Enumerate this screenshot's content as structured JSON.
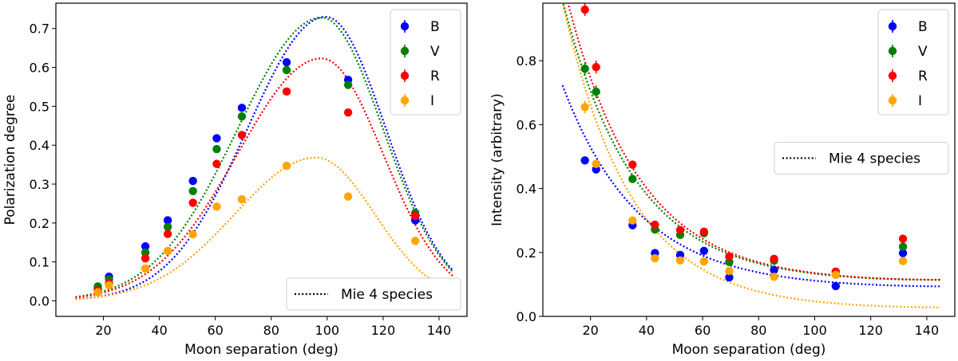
{
  "chart_data": [
    {
      "type": "scatter",
      "xlabel": "Moon separation (deg)",
      "ylabel": "Polarization degree",
      "xlim": [
        3,
        150
      ],
      "ylim": [
        -0.04,
        0.765
      ],
      "xticks": [
        "20",
        "40",
        "60",
        "80",
        "100",
        "120",
        "140"
      ],
      "yticks": [
        "0.0",
        "0.1",
        "0.2",
        "0.3",
        "0.4",
        "0.5",
        "0.6",
        "0.7"
      ],
      "legend_position": "top-right",
      "series": [
        {
          "name": "B",
          "color": "#0000ff",
          "x": [
            18,
            22,
            35,
            43,
            52,
            60.5,
            69.5,
            85.5,
            107.5,
            131.5
          ],
          "y": [
            0.03,
            0.062,
            0.14,
            0.207,
            0.308,
            0.418,
            0.496,
            0.613,
            0.568,
            0.207
          ]
        },
        {
          "name": "V",
          "color": "#008000",
          "x": [
            18,
            22,
            35,
            43,
            52,
            60.5,
            69.5,
            85.5,
            107.5,
            131.5
          ],
          "y": [
            0.037,
            0.055,
            0.124,
            0.19,
            0.282,
            0.39,
            0.474,
            0.593,
            0.555,
            0.226
          ]
        },
        {
          "name": "R",
          "color": "#ff0000",
          "x": [
            18,
            22,
            35,
            43,
            52,
            60.5,
            69.5,
            85.5,
            107.5,
            131.5
          ],
          "y": [
            0.027,
            0.045,
            0.109,
            0.172,
            0.252,
            0.352,
            0.426,
            0.538,
            0.484,
            0.218
          ]
        },
        {
          "name": "I",
          "color": "#ffa500",
          "x": [
            18,
            22,
            35,
            43,
            52,
            60.5,
            69.5,
            85.5,
            107.5,
            131.5
          ],
          "y": [
            0.022,
            0.04,
            0.083,
            0.128,
            0.171,
            0.242,
            0.261,
            0.347,
            0.268,
            0.154
          ]
        }
      ],
      "model": {
        "name": "Mie 4 species",
        "legend_position": "bottom-right",
        "curves": [
          {
            "band": "B",
            "color": "#0000ff",
            "peak_x": 99.5,
            "peak_y": 0.73,
            "sigma_left": 28,
            "sigma_right": 21.5,
            "x_range": [
              10,
              145
            ]
          },
          {
            "band": "V",
            "color": "#008000",
            "peak_x": 98,
            "peak_y": 0.728,
            "sigma_left": 30,
            "sigma_right": 22,
            "x_range": [
              10,
              145
            ]
          },
          {
            "band": "R",
            "color": "#ff0000",
            "peak_x": 98,
            "peak_y": 0.623,
            "sigma_left": 30,
            "sigma_right": 22,
            "x_range": [
              10,
              145
            ]
          },
          {
            "band": "I",
            "color": "#ffa500",
            "peak_x": 96,
            "peak_y": 0.368,
            "sigma_left": 29,
            "sigma_right": 21,
            "x_range": [
              10,
              145
            ]
          }
        ]
      }
    },
    {
      "type": "scatter",
      "xlabel": "Moon separation (deg)",
      "ylabel": "Intensity (arbitrary)",
      "xlim": [
        3,
        150
      ],
      "ylim": [
        0,
        0.98
      ],
      "xticks": [
        "20",
        "40",
        "60",
        "80",
        "100",
        "120",
        "140"
      ],
      "yticks": [
        "0.0",
        "0.2",
        "0.4",
        "0.6",
        "0.8"
      ],
      "legend_position": "top-right",
      "series": [
        {
          "name": "B",
          "color": "#0000ff",
          "x": [
            18,
            22,
            35,
            43,
            52,
            60.5,
            69.5,
            85.5,
            107.5,
            131.5
          ],
          "y": [
            0.488,
            0.46,
            0.285,
            0.198,
            0.192,
            0.205,
            0.122,
            0.145,
            0.095,
            0.198
          ],
          "err": [
            0.008,
            0.008,
            0.008,
            0.008,
            0.008,
            0.008,
            0.008,
            0.008,
            0.008,
            0.008
          ]
        },
        {
          "name": "V",
          "color": "#008000",
          "x": [
            18,
            22,
            35,
            43,
            52,
            60.5,
            69.5,
            85.5,
            107.5,
            131.5
          ],
          "y": [
            0.775,
            0.703,
            0.43,
            0.272,
            0.255,
            0.26,
            0.17,
            0.174,
            0.13,
            0.218
          ],
          "err": [
            0.02,
            0.02,
            0.012,
            0.008,
            0.008,
            0.008,
            0.008,
            0.008,
            0.008,
            0.008
          ]
        },
        {
          "name": "R",
          "color": "#ff0000",
          "x": [
            18,
            22,
            35,
            43,
            52,
            60.5,
            69.5,
            85.5,
            107.5,
            131.5
          ],
          "y": [
            0.96,
            0.78,
            0.475,
            0.287,
            0.27,
            0.265,
            0.187,
            0.18,
            0.14,
            0.243
          ],
          "err": [
            0.02,
            0.02,
            0.01,
            0.008,
            0.008,
            0.008,
            0.008,
            0.008,
            0.008,
            0.008
          ]
        },
        {
          "name": "I",
          "color": "#ffa500",
          "x": [
            18,
            22,
            35,
            43,
            52,
            60.5,
            69.5,
            85.5,
            107.5,
            131.5
          ],
          "y": [
            0.655,
            0.477,
            0.3,
            0.182,
            0.175,
            0.172,
            0.142,
            0.124,
            0.13,
            0.173
          ],
          "err": [
            0.02,
            0.012,
            0.008,
            0.008,
            0.008,
            0.008,
            0.008,
            0.008,
            0.008,
            0.008
          ]
        }
      ],
      "model": {
        "name": "Mie 4 species",
        "legend_position": "center-right",
        "curves": [
          {
            "band": "B",
            "color": "#0000ff",
            "a": 0.915,
            "b": 0.0365,
            "min_x": 120,
            "c": -2e-06,
            "floor": 0.088,
            "x_range": [
              10,
              145
            ]
          },
          {
            "band": "V",
            "color": "#008000",
            "a": 1.3,
            "b": 0.0388,
            "min_x": 115,
            "c": -2.8e-06,
            "floor": 0.107,
            "x_range": [
              10,
              145
            ]
          },
          {
            "band": "R",
            "color": "#ff0000",
            "a": 1.39,
            "b": 0.0388,
            "min_x": 115,
            "c": -2.8e-06,
            "floor": 0.107,
            "x_range": [
              10,
              145
            ]
          },
          {
            "band": "I",
            "color": "#ffa500",
            "a": 1.45,
            "b": 0.041,
            "min_x": 118,
            "c": -1.5e-06,
            "floor": 0.023,
            "x_range": [
              10,
              145
            ]
          }
        ]
      }
    }
  ]
}
